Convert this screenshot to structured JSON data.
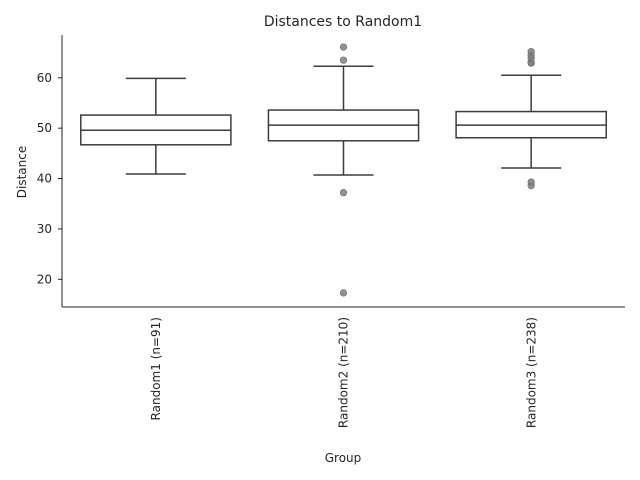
{
  "chart_data": {
    "type": "box",
    "title": "Distances to Random1",
    "xlabel": "Group",
    "ylabel": "Distance",
    "ylim": [
      14.5,
      68.5
    ],
    "yticks": [
      20,
      30,
      40,
      50,
      60
    ],
    "grid": false,
    "categories": [
      "Random1 (n=91)",
      "Random2 (n=210)",
      "Random3 (n=238)"
    ],
    "boxes": [
      {
        "whisker_low": 40.9,
        "q1": 46.7,
        "median": 49.6,
        "q3": 52.6,
        "whisker_high": 59.9,
        "outliers": []
      },
      {
        "whisker_low": 40.7,
        "q1": 47.5,
        "median": 50.6,
        "q3": 53.6,
        "whisker_high": 62.3,
        "outliers": [
          17.3,
          37.2,
          63.5,
          66.1
        ]
      },
      {
        "whisker_low": 42.1,
        "q1": 48.1,
        "median": 50.6,
        "q3": 53.3,
        "whisker_high": 60.5,
        "outliers": [
          38.6,
          39.3,
          62.9,
          63.1,
          63.9,
          64.5,
          65.2
        ]
      }
    ],
    "colors": {
      "box_edge": "#3d3d3d",
      "outlier": "#808080",
      "axis": "#262626",
      "text": "#262626"
    }
  }
}
